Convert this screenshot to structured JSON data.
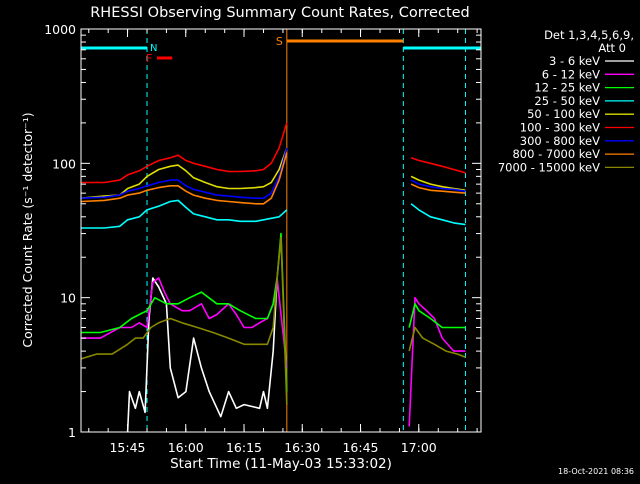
{
  "title": "RHESSI Observing Summary Count Rates, Corrected",
  "timestamp": "18-Oct-2021 08:36",
  "legend": {
    "header_line1": "Det 1,3,4,5,6,9,",
    "header_line2": "Att 0"
  },
  "markers": {
    "n": "N",
    "f": "F",
    "s": "S"
  },
  "colors": {
    "background": "#000000",
    "axes": "#ffffff",
    "night": "#00ffff",
    "flare": "#ff0000",
    "saa": "#ff8000"
  },
  "chart_data": {
    "type": "line",
    "title": "RHESSI Observing Summary Count Rates, Corrected",
    "xlabel": "Start Time (11-May-03 15:33:02)",
    "ylabel": "Corrected Count Rate (s⁻¹ detector⁻¹)",
    "x_unit": "minutes after 15:33:02",
    "xlim": [
      0,
      103
    ],
    "ylim": [
      1,
      1000
    ],
    "yscale": "log",
    "x_ticks": [
      {
        "label": "15:45",
        "x": 11.97
      },
      {
        "label": "16:00",
        "x": 26.97
      },
      {
        "label": "16:15",
        "x": 41.97
      },
      {
        "label": "16:30",
        "x": 56.97
      },
      {
        "label": "16:45",
        "x": 71.97
      },
      {
        "label": "17:00",
        "x": 86.97
      }
    ],
    "y_ticks": [
      {
        "label": "1",
        "y": 1
      },
      {
        "label": "10",
        "y": 10
      },
      {
        "label": "100",
        "y": 100
      },
      {
        "label": "1000",
        "y": 1000
      }
    ],
    "night_intervals": [
      [
        0,
        17
      ],
      [
        83,
        99
      ]
    ],
    "flare_interval": [
      17,
      23.5
    ],
    "saa_interval": [
      53,
      83
    ],
    "series": [
      {
        "name": "3 - 6 keV",
        "color": "#ffffff",
        "points": [
          [
            12,
            1
          ],
          [
            12.5,
            2
          ],
          [
            14,
            1.5
          ],
          [
            15,
            2
          ],
          [
            16.5,
            1.4
          ],
          [
            17.5,
            7
          ],
          [
            18.5,
            14
          ],
          [
            20,
            12
          ],
          [
            22,
            9
          ],
          [
            23,
            3
          ],
          [
            25,
            1.8
          ],
          [
            27,
            2
          ],
          [
            29,
            5
          ],
          [
            31,
            3
          ],
          [
            33,
            2
          ],
          [
            36,
            1.3
          ],
          [
            38,
            2
          ],
          [
            40,
            1.5
          ],
          [
            42,
            1.6
          ],
          [
            46,
            1.5
          ],
          [
            47,
            2
          ],
          [
            48,
            1.5
          ],
          [
            49.5,
            4
          ],
          [
            50.5,
            14
          ]
        ]
      },
      {
        "name": "6 - 12 keV",
        "color": "#ff00ff",
        "points": [
          [
            0,
            5
          ],
          [
            5,
            5
          ],
          [
            10,
            6
          ],
          [
            12,
            6
          ],
          [
            13,
            6
          ],
          [
            15,
            6.5
          ],
          [
            17,
            6
          ],
          [
            18.5,
            13
          ],
          [
            20,
            14
          ],
          [
            21.5,
            11
          ],
          [
            23,
            9
          ],
          [
            26,
            8
          ],
          [
            28,
            8
          ],
          [
            31,
            9
          ],
          [
            33,
            7
          ],
          [
            35,
            7.5
          ],
          [
            38,
            9
          ],
          [
            40,
            7.5
          ],
          [
            42,
            6
          ],
          [
            44,
            6
          ],
          [
            46,
            6.5
          ],
          [
            48,
            7
          ],
          [
            49.5,
            9
          ],
          [
            50.5,
            14
          ],
          [
            53,
            3
          ],
          [
            84.5,
            1.1
          ],
          [
            86,
            10
          ],
          [
            87,
            9
          ],
          [
            89,
            8
          ],
          [
            91,
            7
          ],
          [
            93,
            5
          ],
          [
            96,
            4
          ],
          [
            99,
            4
          ]
        ]
      },
      {
        "name": "12 - 25 keV",
        "color": "#00ff00",
        "points": [
          [
            0,
            5.5
          ],
          [
            5,
            5.5
          ],
          [
            10,
            6
          ],
          [
            13,
            7
          ],
          [
            15,
            7.5
          ],
          [
            17,
            8
          ],
          [
            19,
            10
          ],
          [
            22,
            9
          ],
          [
            25,
            9
          ],
          [
            28,
            10
          ],
          [
            31,
            11
          ],
          [
            35,
            9
          ],
          [
            38,
            9
          ],
          [
            41,
            8
          ],
          [
            45,
            7
          ],
          [
            48,
            7
          ],
          [
            49.5,
            9
          ],
          [
            50.5,
            14
          ],
          [
            51.5,
            30
          ],
          [
            53,
            2
          ],
          [
            84.5,
            6
          ],
          [
            86,
            9
          ],
          [
            87,
            8
          ],
          [
            90,
            7
          ],
          [
            93,
            6
          ],
          [
            96,
            6
          ],
          [
            99,
            6
          ]
        ]
      },
      {
        "name": "25 - 50 keV",
        "color": "#00ffff",
        "points": [
          [
            0,
            33
          ],
          [
            6,
            33
          ],
          [
            10,
            34
          ],
          [
            12,
            38
          ],
          [
            15,
            40
          ],
          [
            17,
            45
          ],
          [
            20,
            48
          ],
          [
            23,
            52
          ],
          [
            25,
            53
          ],
          [
            27,
            47
          ],
          [
            29,
            42
          ],
          [
            32,
            40
          ],
          [
            35,
            38
          ],
          [
            38,
            38
          ],
          [
            41,
            37
          ],
          [
            45,
            37
          ],
          [
            47,
            38
          ],
          [
            49,
            39
          ],
          [
            51,
            40
          ],
          [
            53,
            45
          ],
          [
            85,
            50
          ],
          [
            87,
            45
          ],
          [
            90,
            40
          ],
          [
            93,
            38
          ],
          [
            96,
            36
          ],
          [
            99,
            35
          ]
        ]
      },
      {
        "name": "50 - 100 keV",
        "color": "#dddd00",
        "points": [
          [
            0,
            55
          ],
          [
            6,
            57
          ],
          [
            10,
            58
          ],
          [
            12,
            65
          ],
          [
            15,
            70
          ],
          [
            17,
            80
          ],
          [
            20,
            90
          ],
          [
            23,
            95
          ],
          [
            25,
            97
          ],
          [
            27,
            88
          ],
          [
            29,
            78
          ],
          [
            32,
            72
          ],
          [
            35,
            67
          ],
          [
            38,
            65
          ],
          [
            41,
            65
          ],
          [
            45,
            66
          ],
          [
            47,
            67
          ],
          [
            49,
            72
          ],
          [
            51,
            90
          ],
          [
            53,
            130
          ],
          [
            85,
            80
          ],
          [
            87,
            75
          ],
          [
            90,
            70
          ],
          [
            93,
            67
          ],
          [
            96,
            65
          ],
          [
            99,
            63
          ]
        ]
      },
      {
        "name": "100 - 300 keV",
        "color": "#ff0000",
        "points": [
          [
            0,
            72
          ],
          [
            6,
            72
          ],
          [
            10,
            75
          ],
          [
            12,
            82
          ],
          [
            15,
            88
          ],
          [
            17,
            95
          ],
          [
            20,
            105
          ],
          [
            23,
            110
          ],
          [
            25,
            115
          ],
          [
            27,
            105
          ],
          [
            29,
            100
          ],
          [
            32,
            95
          ],
          [
            35,
            90
          ],
          [
            38,
            87
          ],
          [
            41,
            87
          ],
          [
            45,
            88
          ],
          [
            47,
            90
          ],
          [
            49,
            100
          ],
          [
            51,
            130
          ],
          [
            53,
            200
          ],
          [
            85,
            110
          ],
          [
            87,
            105
          ],
          [
            90,
            100
          ],
          [
            93,
            95
          ],
          [
            96,
            90
          ],
          [
            99,
            85
          ]
        ]
      },
      {
        "name": "300 - 800 keV",
        "color": "#0000ff",
        "points": [
          [
            0,
            55
          ],
          [
            6,
            56
          ],
          [
            10,
            58
          ],
          [
            12,
            62
          ],
          [
            15,
            65
          ],
          [
            17,
            68
          ],
          [
            20,
            72
          ],
          [
            23,
            75
          ],
          [
            25,
            75
          ],
          [
            27,
            68
          ],
          [
            29,
            64
          ],
          [
            32,
            61
          ],
          [
            35,
            58
          ],
          [
            38,
            57
          ],
          [
            41,
            56
          ],
          [
            45,
            55
          ],
          [
            47,
            55
          ],
          [
            49,
            60
          ],
          [
            51,
            80
          ],
          [
            53,
            130
          ],
          [
            85,
            75
          ],
          [
            87,
            70
          ],
          [
            90,
            67
          ],
          [
            93,
            65
          ],
          [
            96,
            64
          ],
          [
            99,
            62
          ]
        ]
      },
      {
        "name": "800 - 7000 keV",
        "color": "#ff8000",
        "points": [
          [
            0,
            52
          ],
          [
            6,
            53
          ],
          [
            10,
            55
          ],
          [
            12,
            58
          ],
          [
            15,
            60
          ],
          [
            17,
            63
          ],
          [
            20,
            66
          ],
          [
            23,
            68
          ],
          [
            25,
            68
          ],
          [
            27,
            62
          ],
          [
            29,
            58
          ],
          [
            32,
            55
          ],
          [
            35,
            53
          ],
          [
            38,
            52
          ],
          [
            41,
            51
          ],
          [
            45,
            50
          ],
          [
            47,
            50
          ],
          [
            49,
            55
          ],
          [
            51,
            75
          ],
          [
            53,
            120
          ],
          [
            85,
            70
          ],
          [
            87,
            66
          ],
          [
            90,
            63
          ],
          [
            93,
            62
          ],
          [
            96,
            61
          ],
          [
            99,
            60
          ]
        ]
      },
      {
        "name": "7000 - 15000 keV",
        "color": "#888800",
        "points": [
          [
            0,
            3.5
          ],
          [
            4,
            3.8
          ],
          [
            8,
            3.8
          ],
          [
            12,
            4.5
          ],
          [
            14,
            5
          ],
          [
            16,
            5
          ],
          [
            18,
            6
          ],
          [
            20,
            6.5
          ],
          [
            23,
            7
          ],
          [
            26,
            6.5
          ],
          [
            30,
            6
          ],
          [
            34,
            5.5
          ],
          [
            38,
            5
          ],
          [
            42,
            4.5
          ],
          [
            46,
            4.5
          ],
          [
            48,
            4.5
          ],
          [
            49.5,
            6
          ],
          [
            50.5,
            14
          ],
          [
            51.5,
            28
          ],
          [
            53,
            1.6
          ],
          [
            84.5,
            4
          ],
          [
            86,
            6
          ],
          [
            88,
            5
          ],
          [
            91,
            4.5
          ],
          [
            94,
            4
          ],
          [
            97,
            3.8
          ],
          [
            99,
            3.6
          ]
        ]
      }
    ]
  }
}
